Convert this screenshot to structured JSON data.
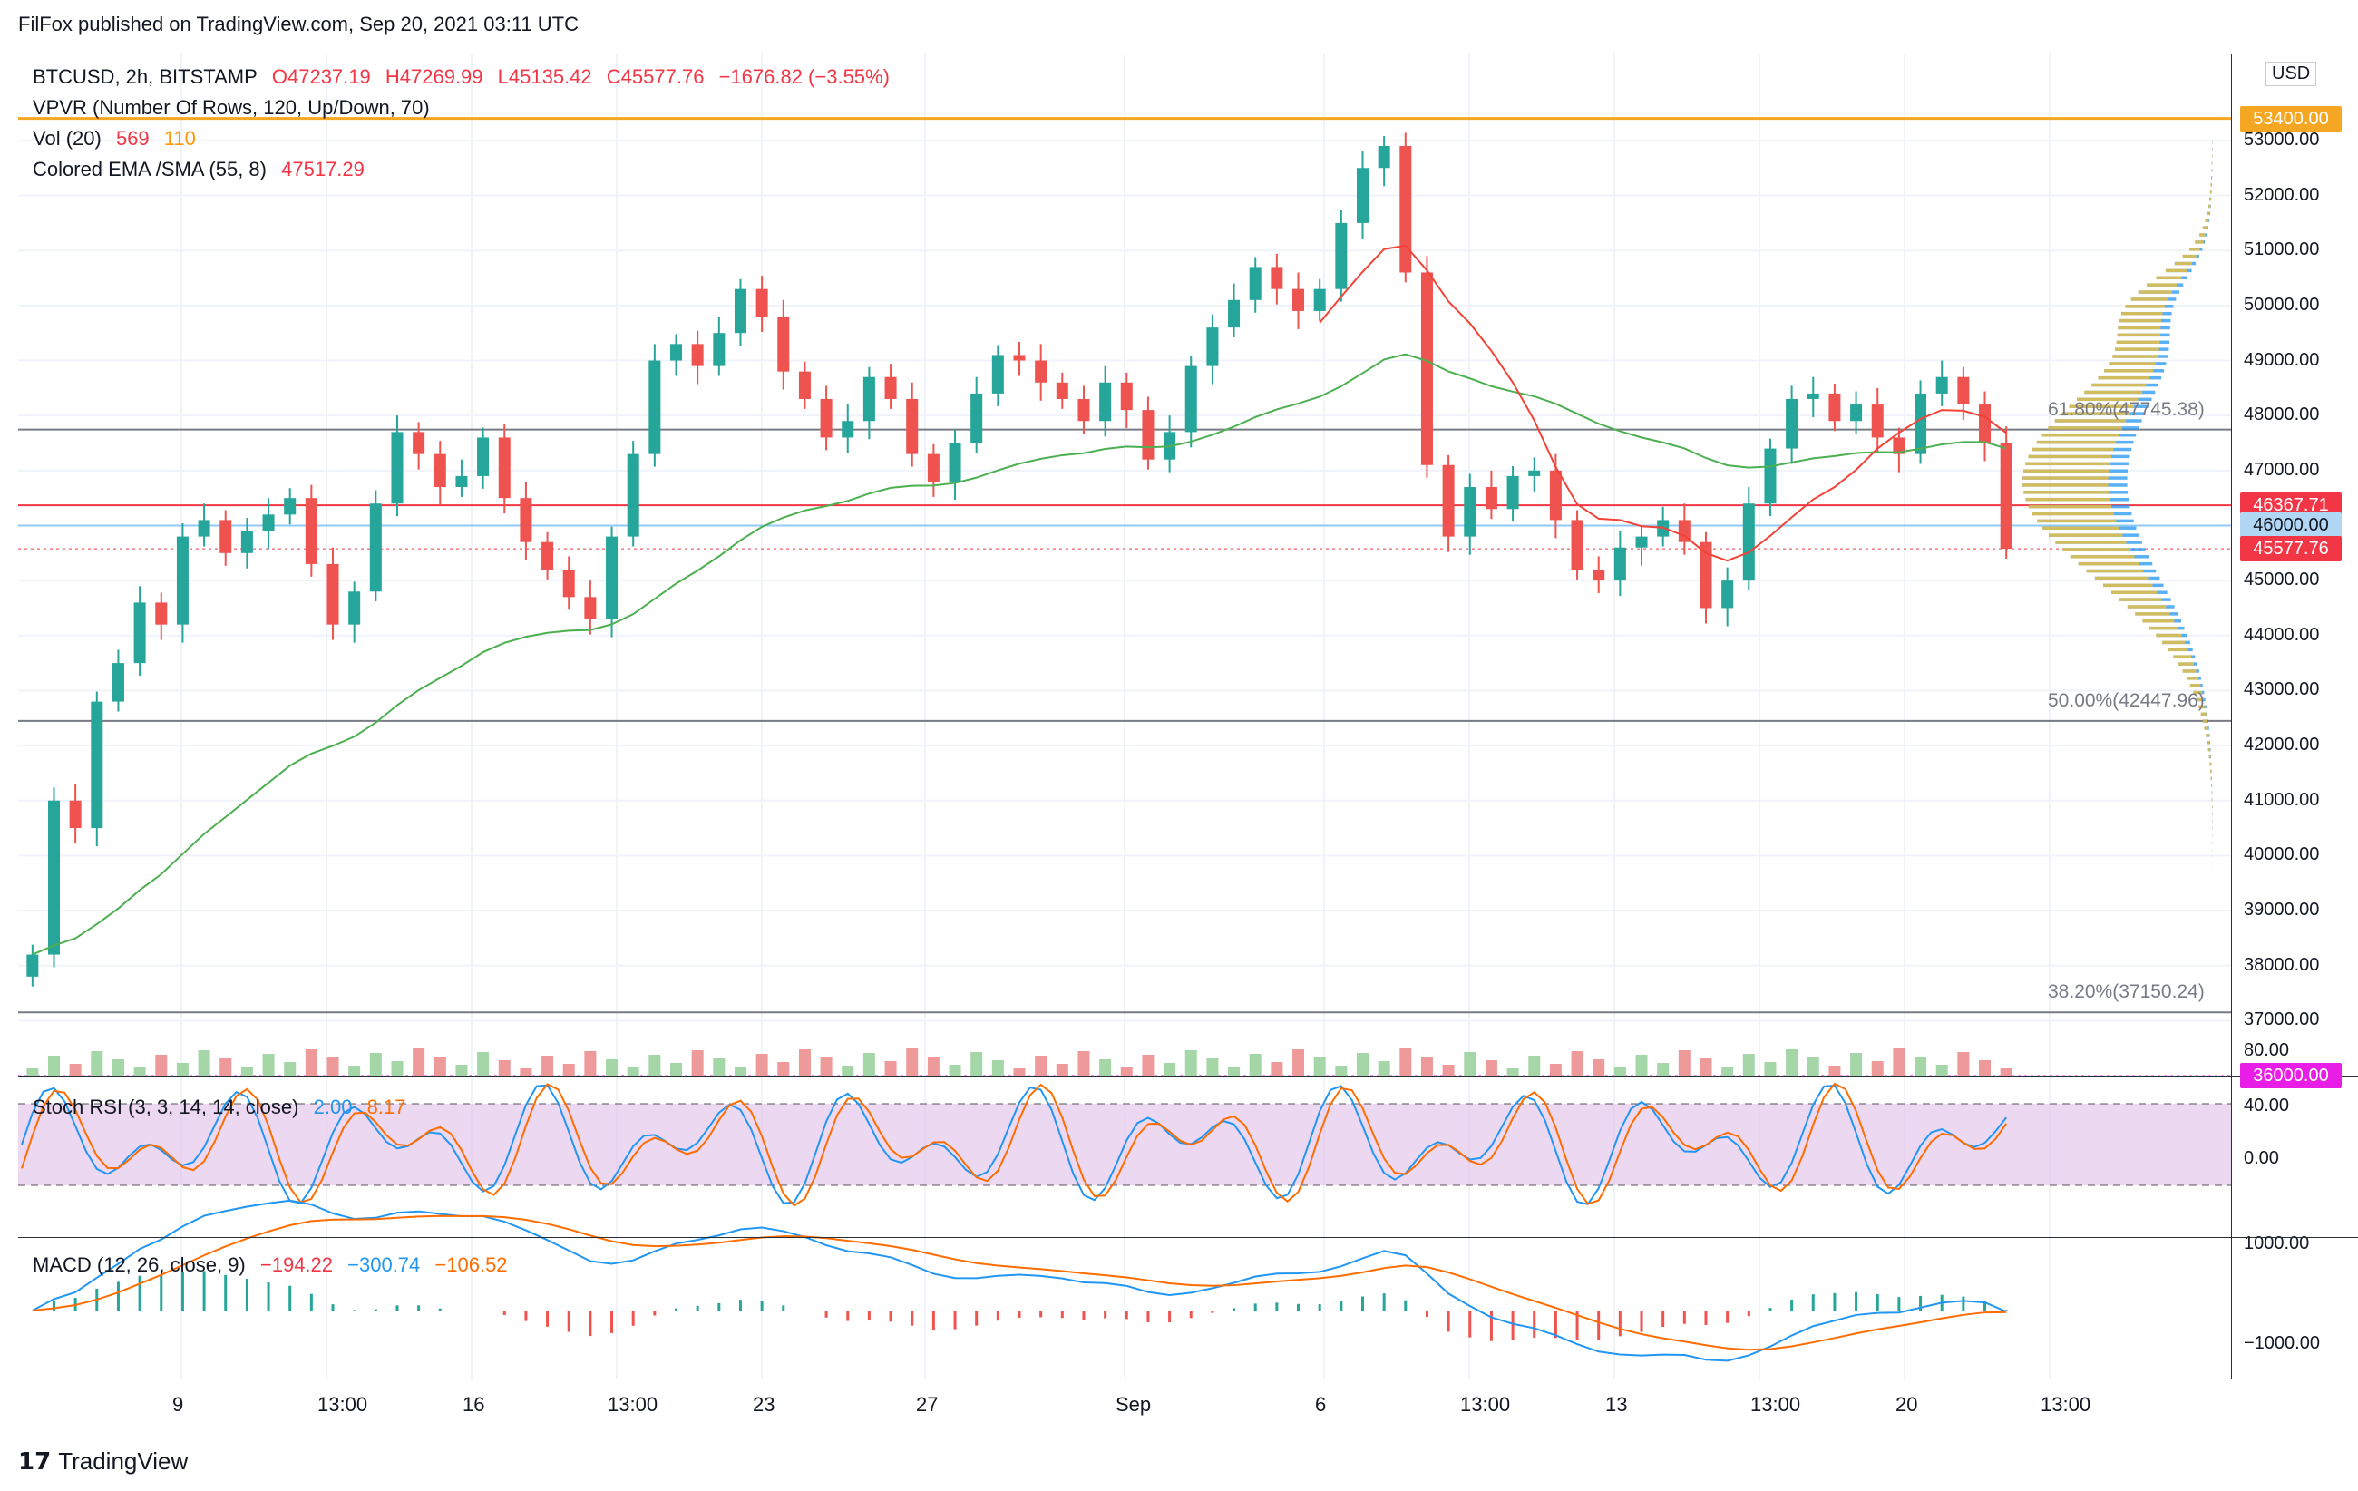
{
  "header": {
    "published": "FilFox published on TradingView.com, Sep 20, 2021 03:11 UTC"
  },
  "legend": {
    "symbol": "BTCUSD, 2h, BITSTAMP",
    "o": "O47237.19",
    "h": "H47269.99",
    "l": "L45135.42",
    "c": "C45577.76",
    "chg": "−1676.82 (−3.55%)",
    "vpvr": "VPVR (Number Of Rows, 120, Up/Down, 70)",
    "vol_label": "Vol (20)",
    "vol_v1": "569",
    "vol_v2": "110",
    "ema_label": "Colored EMA /SMA (55, 8)",
    "ema_value": "47517.29",
    "stoch_label": "Stoch RSI (3, 3, 14, 14, close)",
    "stoch_k": "2.00",
    "stoch_d": "8.17",
    "macd_label": "MACD (12, 26, close, 9)",
    "macd_hist": "−194.22",
    "macd_line": "−300.74",
    "macd_signal": "−106.52"
  },
  "axis": {
    "currency": "USD",
    "price_ticks": [
      "53000.00",
      "52000.00",
      "51000.00",
      "50000.00",
      "49000.00",
      "48000.00",
      "47000.00",
      "46000.00",
      "45000.00",
      "44000.00",
      "43000.00",
      "42000.00",
      "41000.00",
      "40000.00",
      "39000.00",
      "38000.00",
      "37000.00"
    ],
    "price_tags": [
      {
        "label": "53400.00",
        "color": "#f5a623",
        "price": 53400
      },
      {
        "label": "46367.71",
        "color": "#f23645",
        "price": 46367.71
      },
      {
        "label": "46000.00",
        "color": "#b2d7f5",
        "price": 46000
      },
      {
        "label": "45577.76",
        "color": "#f23645",
        "price": 45577.76
      },
      {
        "label": "36000.00",
        "color": "#e91ee6",
        "price": 36000
      }
    ],
    "stoch_ticks": [
      "80.00",
      "40.00",
      "0.00"
    ],
    "macd_ticks": [
      "1000.00",
      "−1000.00"
    ],
    "x_ticks": [
      "9",
      "13:00",
      "16",
      "13:00",
      "23",
      "27",
      "Sep",
      "6",
      "13:00",
      "13",
      "13:00",
      "20",
      "13:00"
    ]
  },
  "fib": [
    {
      "label": "61.80%(47745.38)",
      "price": 47745.38
    },
    {
      "label": "50.00%(42447.96)",
      "price": 42447.96
    },
    {
      "label": "38.20%(37150.24)",
      "price": 37150.24
    }
  ],
  "colors": {
    "up": "#26a69a",
    "down": "#ef5350",
    "ema": "#4caf50",
    "sma": "#f44336",
    "stoch_k": "#2196f3",
    "stoch_d": "#ff6d00",
    "macd": "#2196f3",
    "signal": "#ff6d00",
    "stoch_band": "#e1bee7"
  },
  "chart_data": {
    "type": "candlestick",
    "title": "BTCUSD, 2h, BITSTAMP",
    "ylim": [
      36000,
      54400
    ],
    "close": [
      38200,
      41000,
      40500,
      42800,
      43500,
      44600,
      44200,
      45800,
      46100,
      45500,
      45900,
      46200,
      46500,
      45300,
      44200,
      44800,
      46400,
      47700,
      47300,
      46700,
      46900,
      47600,
      46500,
      45700,
      45200,
      44700,
      44300,
      45800,
      47300,
      49000,
      49300,
      48900,
      49500,
      50300,
      49800,
      48800,
      48300,
      47600,
      47900,
      48700,
      48300,
      47300,
      46800,
      47500,
      48400,
      49100,
      49000,
      48600,
      48300,
      47900,
      48600,
      48100,
      47200,
      47700,
      48900,
      49600,
      50100,
      50700,
      50300,
      49900,
      50300,
      51500,
      52500,
      52900,
      50600,
      47100,
      45800,
      46700,
      46300,
      46900,
      47000,
      46100,
      45200,
      45000,
      45600,
      45800,
      46100,
      45700,
      44500,
      45000,
      46400,
      47400,
      48300,
      48400,
      47900,
      48200,
      47600,
      47300,
      48400,
      48700,
      48200,
      47500,
      45577.76
    ],
    "note_x_dates": "Aug 6 – Sep 20, 2021 (2h bars)"
  }
}
